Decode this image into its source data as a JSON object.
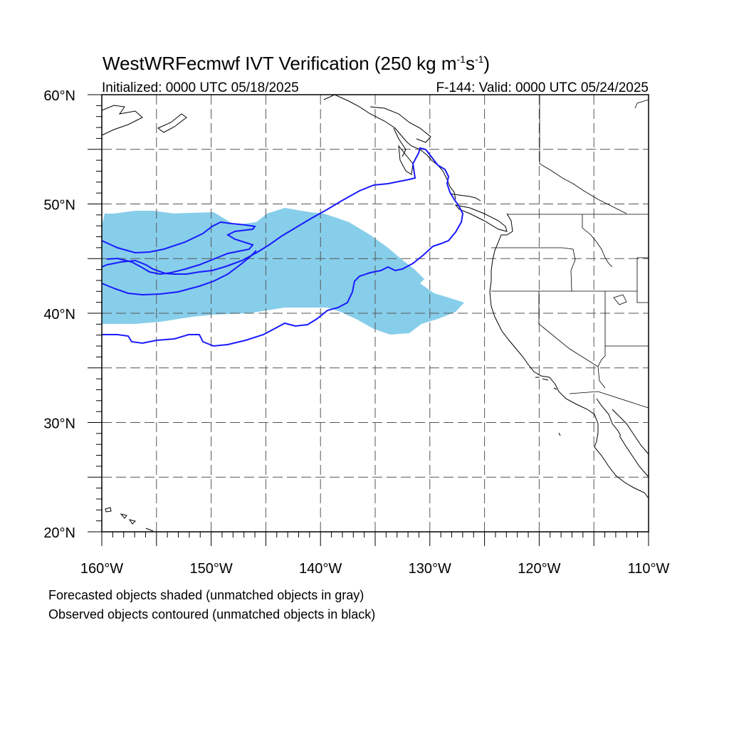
{
  "title": {
    "prefix": "WestWRFecmwf IVT Verification (250 kg m",
    "sup1": "-1",
    "mid": "s",
    "sup2": "-1",
    "suffix": ")"
  },
  "initialized": "Initialized: 0000 UTC 05/18/2025",
  "valid": "F-144: Valid: 0000 UTC 05/24/2025",
  "notes": {
    "line1": "Forecasted objects shaded (unmatched objects in gray)",
    "line2": "Observed objects contoured (unmatched objects in black)"
  },
  "colors": {
    "forecast_fill": "#87ceeb",
    "observed_contour": "#1a1aff",
    "coastline": "#000000",
    "grid": "#555555"
  },
  "map": {
    "lon_range": [
      -160,
      -110
    ],
    "lat_range": [
      20,
      60
    ],
    "lon_labels": [
      {
        "lon": -160,
        "text": "160°W"
      },
      {
        "lon": -150,
        "text": "150°W"
      },
      {
        "lon": -140,
        "text": "140°W"
      },
      {
        "lon": -130,
        "text": "130°W"
      },
      {
        "lon": -120,
        "text": "120°W"
      },
      {
        "lon": -110,
        "text": "110°W"
      }
    ],
    "lat_labels": [
      {
        "lat": 60,
        "text": "60°N"
      },
      {
        "lat": 50,
        "text": "50°N"
      },
      {
        "lat": 40,
        "text": "40°N"
      },
      {
        "lat": 30,
        "text": "30°N"
      },
      {
        "lat": 20,
        "text": "20°N"
      }
    ],
    "grid_lons": [
      -155,
      -150,
      -145,
      -140,
      -135,
      -130,
      -125,
      -120,
      -115
    ],
    "grid_lats": [
      25,
      30,
      35,
      40,
      45,
      50,
      55
    ]
  }
}
